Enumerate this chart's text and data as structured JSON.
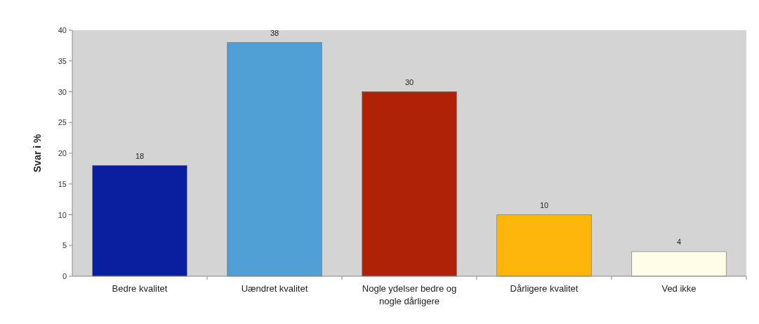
{
  "chart_data": {
    "type": "bar",
    "ylabel": "Svar i %",
    "categories": [
      "Bedre kvalitet",
      "Uændret kvalitet",
      "Nogle ydelser bedre og nogle dårligere",
      "Dårligere kvalitet",
      "Ved ikke"
    ],
    "values": [
      18,
      38,
      30,
      10,
      4
    ],
    "colors": [
      "#0a1fa0",
      "#4f9fd4",
      "#b02208",
      "#ffb60a",
      "#fdfde8"
    ],
    "ylim": [
      0,
      40
    ],
    "yticks": [
      0,
      5,
      10,
      15,
      20,
      25,
      30,
      35,
      40
    ],
    "data_labels": true,
    "grid": false
  }
}
